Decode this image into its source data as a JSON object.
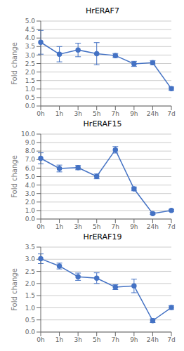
{
  "chart_data": [
    {
      "type": "line",
      "title": "HrERAF7",
      "ylabel": "Fold change",
      "categories": [
        "0h",
        "1h",
        "3h",
        "5h",
        "7h",
        "9h",
        "24h",
        "7d"
      ],
      "values": [
        3.75,
        3.05,
        3.3,
        3.08,
        2.97,
        2.48,
        2.55,
        1.02
      ],
      "errors": [
        0.7,
        0.45,
        0.4,
        0.65,
        0.12,
        0.15,
        0.12,
        0.1
      ],
      "ylim": [
        0.0,
        5.0
      ],
      "yticks": [
        {
          "value": 0,
          "label": "0.0"
        },
        0.5,
        {
          "value": 1,
          "label": "1.0"
        },
        1.5,
        {
          "value": 2,
          "label": "2.0"
        },
        2.5,
        {
          "value": 3,
          "label": "3.0"
        },
        3.5,
        {
          "value": 4,
          "label": "4.0"
        },
        4.5,
        {
          "value": 5,
          "label": "5.0"
        }
      ],
      "color": "#4472C4",
      "marker": "circle",
      "grid": true
    },
    {
      "type": "line",
      "title": "HrERAF15",
      "ylabel": "Fold change",
      "categories": [
        "0h",
        "1h",
        "3h",
        "5h",
        "7h",
        "9h",
        "24h",
        "7d"
      ],
      "values": [
        7.15,
        5.95,
        6.05,
        5.02,
        8.15,
        3.55,
        0.65,
        1.02
      ],
      "errors": [
        0.65,
        0.4,
        0.25,
        0.28,
        0.38,
        0.22,
        0.12,
        0.12
      ],
      "ylim": [
        0.0,
        10.0
      ],
      "yticks": [
        {
          "value": 0,
          "label": "0.0"
        },
        {
          "value": 1,
          "label": "1.0"
        },
        {
          "value": 2,
          "label": "2.0"
        },
        {
          "value": 3,
          "label": "3.0"
        },
        {
          "value": 4,
          "label": "4.0"
        },
        {
          "value": 5,
          "label": "5.0"
        },
        {
          "value": 6,
          "label": "6.0"
        },
        {
          "value": 7,
          "label": "7.0"
        },
        {
          "value": 8,
          "label": "8.0"
        },
        {
          "value": 9,
          "label": "9.0"
        },
        {
          "value": 10,
          "label": "10.0"
        }
      ],
      "color": "#4472C4",
      "marker": "circle",
      "grid": true
    },
    {
      "type": "line",
      "title": "HrERAF19",
      "ylabel": "Fold change",
      "categories": [
        "0h",
        "1h",
        "3h",
        "5h",
        "7h",
        "9h",
        "24h",
        "7d"
      ],
      "values": [
        3.02,
        2.72,
        2.28,
        2.22,
        1.85,
        1.9,
        0.47,
        1.01
      ],
      "errors": [
        0.2,
        0.12,
        0.15,
        0.22,
        0.1,
        0.28,
        0.08,
        0.08
      ],
      "ylim": [
        0.0,
        3.5
      ],
      "yticks": [
        {
          "value": 0,
          "label": "0.0"
        },
        0.5,
        {
          "value": 1,
          "label": "1.0"
        },
        1.5,
        {
          "value": 2,
          "label": "2.0"
        },
        2.5,
        {
          "value": 3,
          "label": "3.0"
        },
        3.5
      ],
      "color": "#4472C4",
      "marker": "circle",
      "grid": true
    }
  ]
}
